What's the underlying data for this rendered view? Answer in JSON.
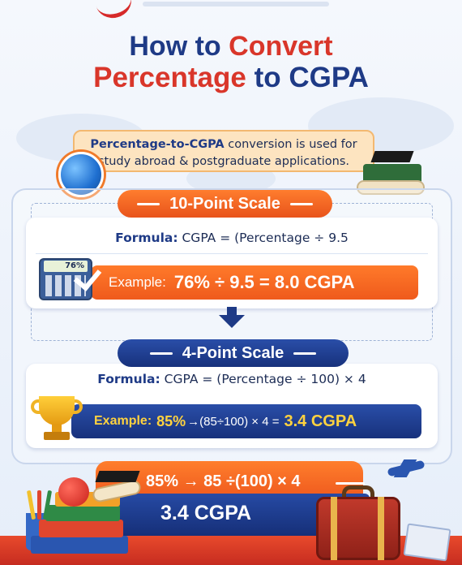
{
  "header": {
    "title_part1": "How to",
    "title_part2": "Convert",
    "title_part3": "Percentage",
    "title_part4": "to CGPA"
  },
  "intro": {
    "lead": "Percentage-to-CGPA",
    "rest1": " conversion is used for",
    "rest2": "study abroad & postgraduate applications."
  },
  "scale10": {
    "heading": "10-Point Scale",
    "formula_label": "Formula:",
    "formula_text": "CGPA = (Percentage ÷ 9.5",
    "calculator_display": "76%",
    "example_label": "Example:",
    "example_value": "76% ÷ 9.5 = 8.0 CGPA"
  },
  "scale4": {
    "heading": "4-Point Scale",
    "formula_label": "Formula:",
    "formula_text": "CGPA = (Percentage ÷ 100) × 4",
    "example_label": "Example:",
    "example_pct": "85%",
    "example_mid": "→(85÷100) × 4 =",
    "example_result": "3.4 CGPA"
  },
  "summary": {
    "line1": "85% → 85 ÷(100) × 4",
    "line2": "3.4 CGPA"
  },
  "icons": [
    "globe-icon",
    "graduation-cap-icon",
    "calculator-icon",
    "checkmark-icon",
    "down-arrow-icon",
    "trophy-icon",
    "books-icon",
    "apple-icon",
    "suitcase-icon",
    "airplane-icon"
  ],
  "colors": {
    "navy": "#1e3a86",
    "red": "#d9362a",
    "orange": "#ef5a1c",
    "gold": "#ffd23f"
  }
}
